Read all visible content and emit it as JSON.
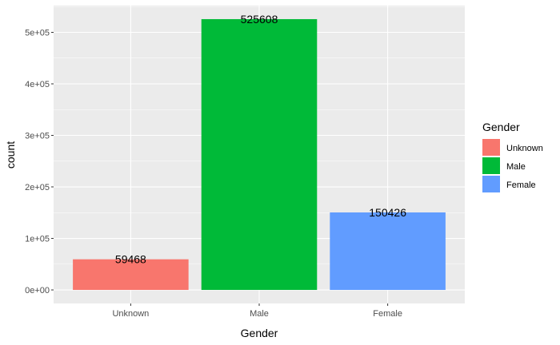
{
  "chart_data": {
    "type": "bar",
    "categories": [
      "Unknown",
      "Male",
      "Female"
    ],
    "values": [
      59468,
      525608,
      150426
    ],
    "data_labels": [
      "59468",
      "525608",
      "150426"
    ],
    "colors": [
      "#F8766D",
      "#00BA38",
      "#619CFF"
    ],
    "xlabel": "Gender",
    "ylabel": "count",
    "ylim": [
      -26305,
      551913
    ],
    "yticks": [
      0,
      100000,
      200000,
      300000,
      400000,
      500000
    ],
    "ytick_labels": [
      "0e+00",
      "1e+05",
      "2e+05",
      "3e+05",
      "4e+05",
      "5e+05"
    ],
    "grid": true,
    "panel_background": "#EBEBEB",
    "grid_color": "#FFFFFF",
    "legend": {
      "title": "Gender",
      "position": "right",
      "entries": [
        "Unknown",
        "Male",
        "Female"
      ]
    }
  }
}
